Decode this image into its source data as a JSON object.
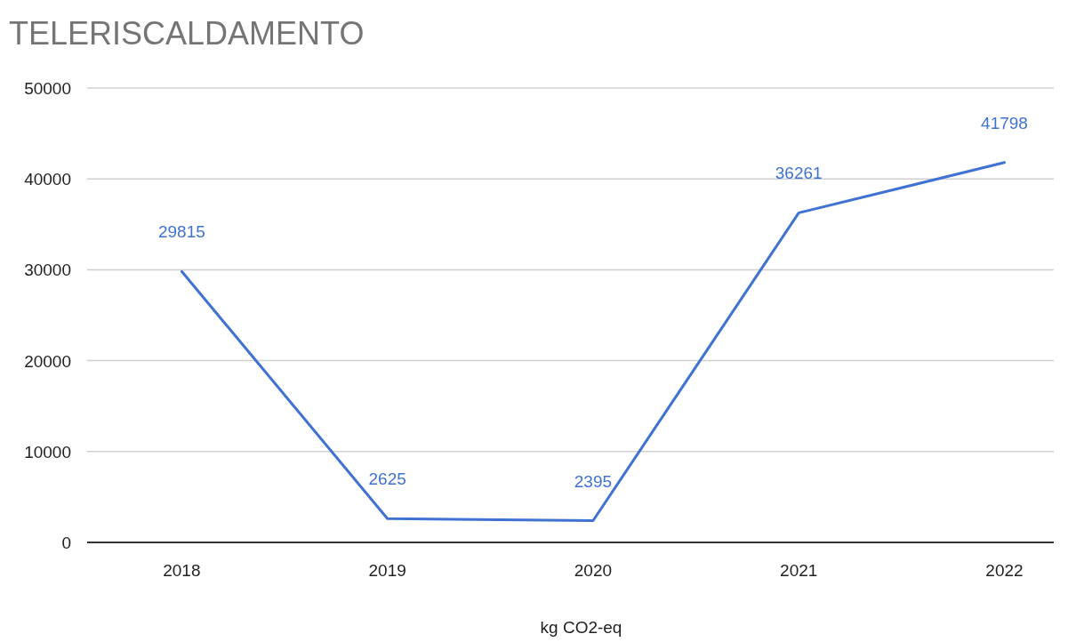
{
  "chart_data": {
    "type": "line",
    "title": "TELERISCALDAMENTO",
    "xlabel": "kg CO2-eq",
    "categories": [
      "2018",
      "2019",
      "2020",
      "2021",
      "2022"
    ],
    "series": [
      {
        "color": "#3f72d2",
        "values": [
          29815,
          2625,
          2395,
          36261,
          41798
        ]
      }
    ],
    "ylim": [
      0,
      50000
    ],
    "yticks": [
      0,
      10000,
      20000,
      30000,
      40000,
      50000
    ],
    "grid": "y",
    "data_labels": true
  }
}
